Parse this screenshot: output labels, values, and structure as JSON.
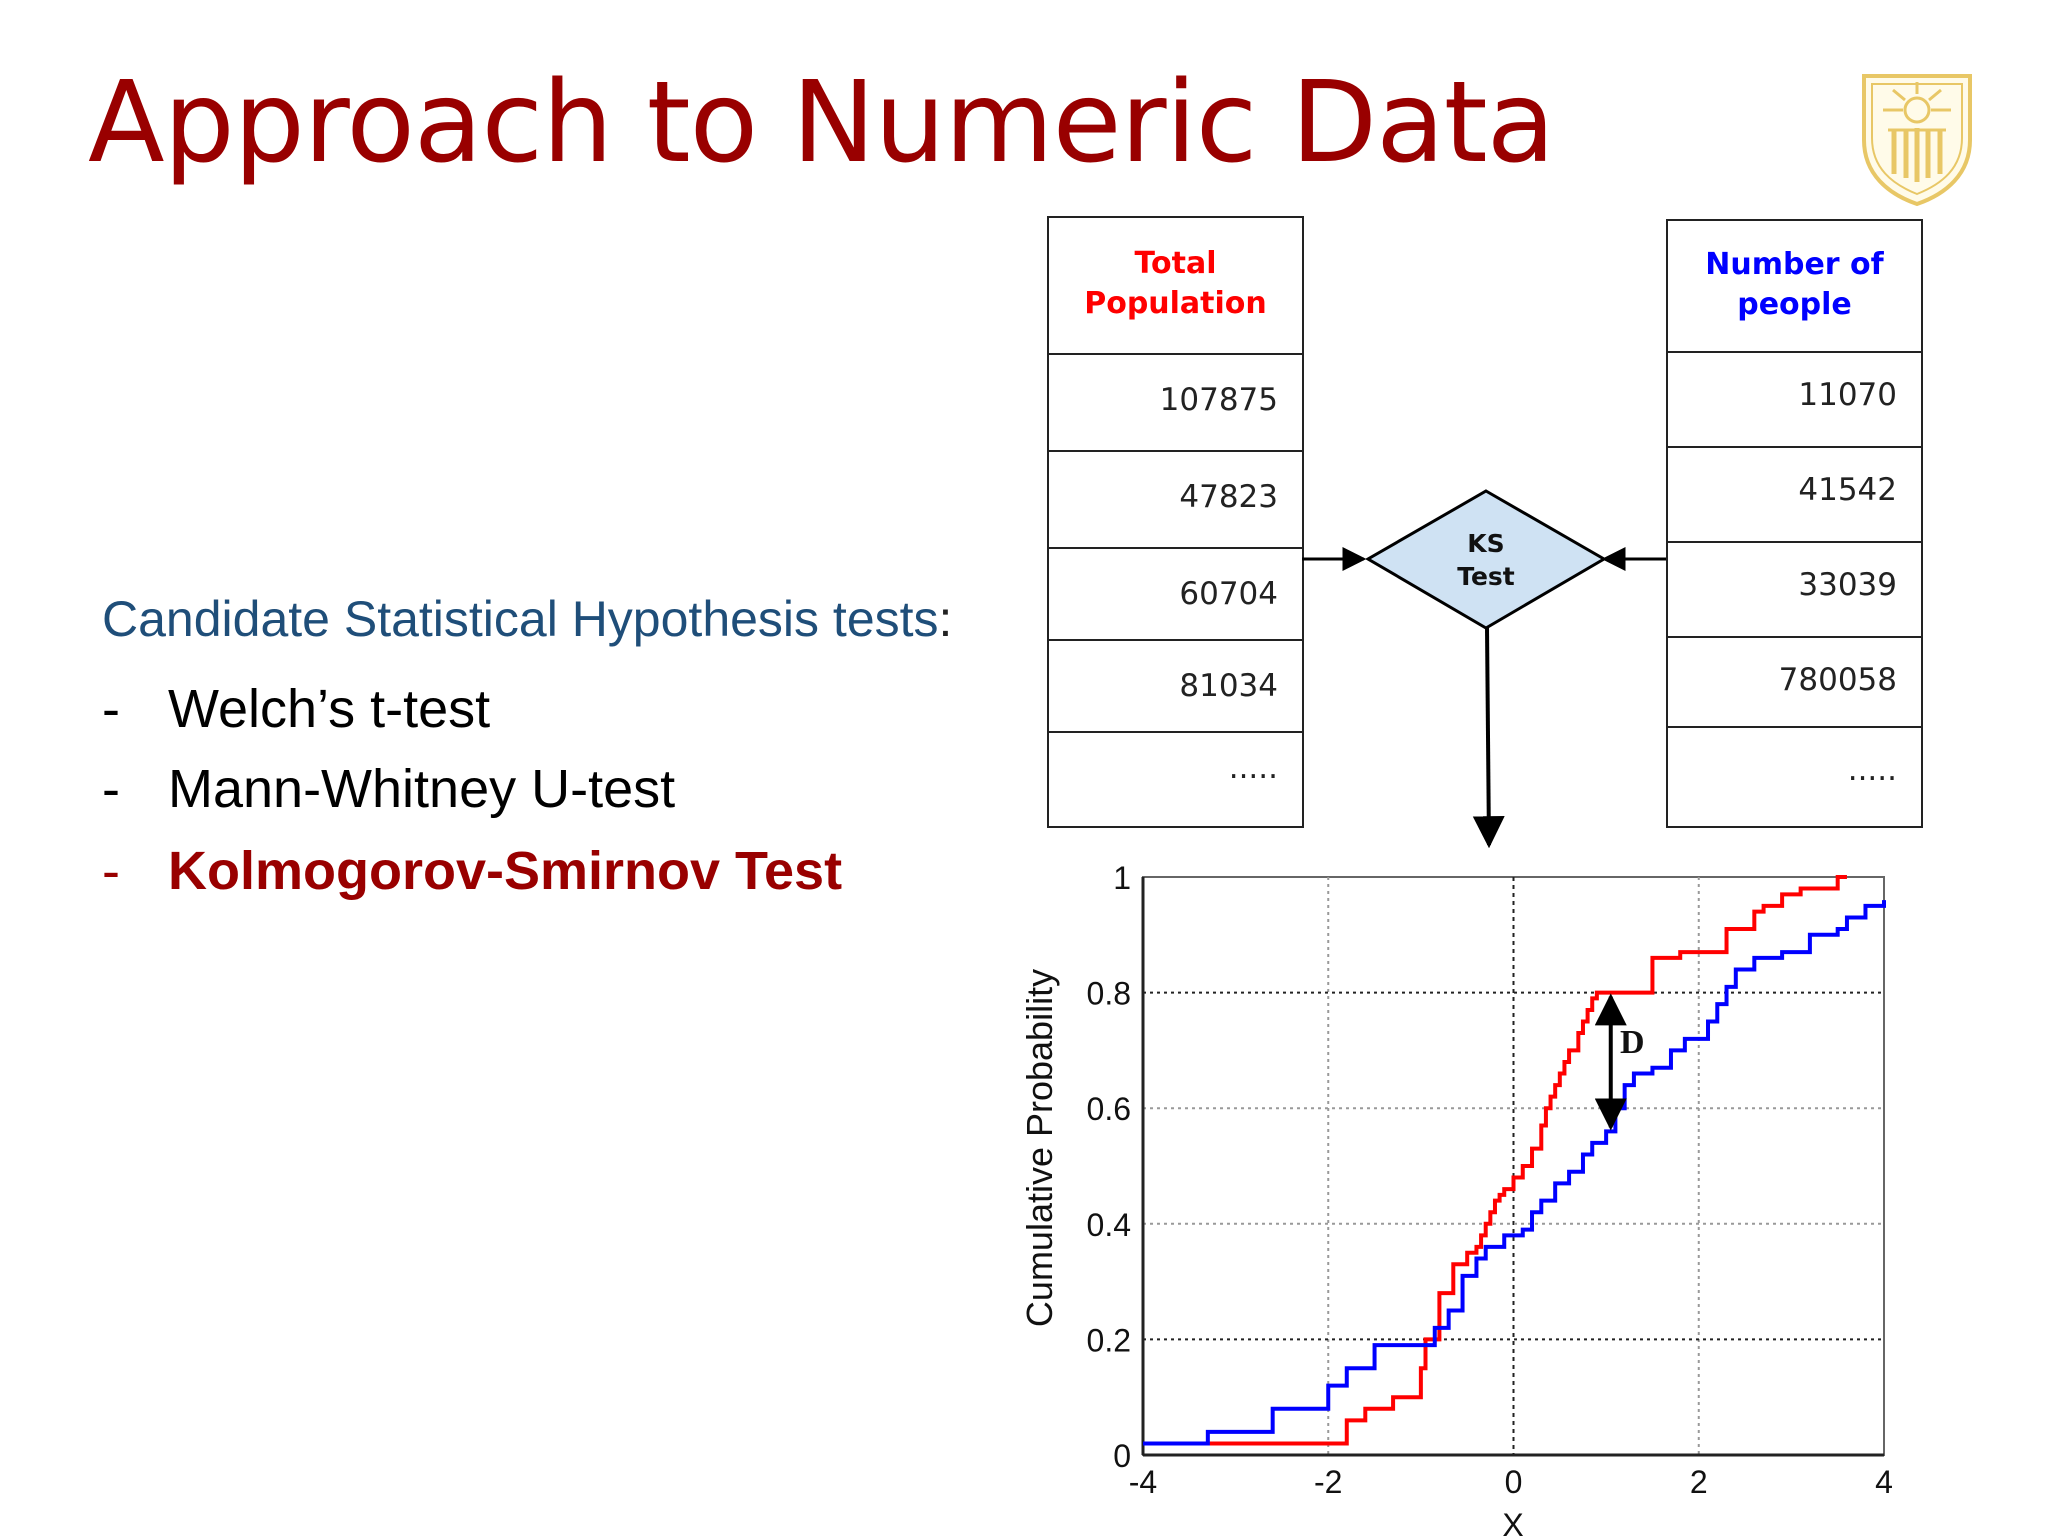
{
  "slide": {
    "title": "Approach to Numeric Data",
    "intro": "Candidate Statistical Hypothesis tests",
    "intro_colon": ":",
    "bullets": [
      {
        "dash": "-",
        "text": "Welch’s t-test"
      },
      {
        "dash": "-",
        "text": "Mann-Whitney U-test"
      },
      {
        "dash": "-",
        "text": "Kolmogorov-Smirnov Test"
      }
    ]
  },
  "colors": {
    "title": "#990000",
    "intro": "#1f4e79",
    "red_series": "#ff0000",
    "blue_series": "#0000ff",
    "diamond_fill": "#cfe2f3",
    "logo_gold": "#e8c766"
  },
  "diagram": {
    "left_table": {
      "header": [
        "Total",
        "Population"
      ],
      "rows": [
        "107875",
        "47823",
        "60704",
        "81034",
        "....."
      ]
    },
    "right_table": {
      "header": [
        "Number of",
        "people"
      ],
      "rows": [
        "11070",
        "41542",
        "33039",
        "780058",
        "....."
      ]
    },
    "diamond_label": [
      "KS",
      "Test"
    ],
    "logo": "university-seal"
  },
  "chart_data": {
    "type": "line",
    "xlabel": "X",
    "ylabel": "Cumulative Probability",
    "xlim": [
      -4,
      4
    ],
    "ylim": [
      0,
      1
    ],
    "xticks": [
      "-4",
      "-2",
      "0",
      "2",
      "4"
    ],
    "yticks": [
      "0",
      "0.2",
      "0.4",
      "0.6",
      "0.8",
      "1"
    ],
    "grid": true,
    "annotation": "D",
    "series": [
      {
        "color": "#ff0000",
        "x": [
          -4,
          -2.0,
          -1.8,
          -1.6,
          -1.3,
          -1.0,
          -0.95,
          -0.8,
          -0.65,
          -0.5,
          -0.4,
          -0.35,
          -0.3,
          -0.25,
          -0.2,
          -0.15,
          -0.1,
          0.0,
          0.1,
          0.2,
          0.3,
          0.35,
          0.4,
          0.45,
          0.5,
          0.55,
          0.6,
          0.7,
          0.75,
          0.8,
          0.85,
          0.9,
          1.5,
          1.8,
          2.3,
          2.6,
          2.7,
          2.9,
          3.1,
          3.5,
          3.6
        ],
        "y": [
          0.02,
          0.02,
          0.06,
          0.08,
          0.1,
          0.15,
          0.2,
          0.28,
          0.33,
          0.35,
          0.36,
          0.38,
          0.4,
          0.42,
          0.44,
          0.45,
          0.46,
          0.48,
          0.5,
          0.53,
          0.57,
          0.6,
          0.62,
          0.64,
          0.66,
          0.68,
          0.7,
          0.73,
          0.75,
          0.77,
          0.79,
          0.8,
          0.86,
          0.87,
          0.91,
          0.94,
          0.95,
          0.97,
          0.98,
          1.0,
          1.0
        ]
      },
      {
        "color": "#0000ff",
        "x": [
          -4,
          -3.3,
          -2.6,
          -2.0,
          -1.8,
          -1.5,
          -0.85,
          -0.7,
          -0.55,
          -0.4,
          -0.3,
          -0.1,
          0.1,
          0.2,
          0.3,
          0.45,
          0.6,
          0.75,
          0.85,
          1.0,
          1.1,
          1.2,
          1.3,
          1.5,
          1.7,
          1.85,
          2.1,
          2.2,
          2.3,
          2.4,
          2.6,
          2.9,
          3.2,
          3.5,
          3.6,
          3.8,
          4.0
        ],
        "y": [
          0.02,
          0.04,
          0.08,
          0.12,
          0.15,
          0.19,
          0.22,
          0.25,
          0.31,
          0.34,
          0.36,
          0.38,
          0.39,
          0.42,
          0.44,
          0.47,
          0.49,
          0.52,
          0.54,
          0.56,
          0.6,
          0.64,
          0.66,
          0.67,
          0.7,
          0.72,
          0.75,
          0.78,
          0.81,
          0.84,
          0.86,
          0.87,
          0.9,
          0.91,
          0.93,
          0.95,
          0.96
        ]
      }
    ]
  }
}
